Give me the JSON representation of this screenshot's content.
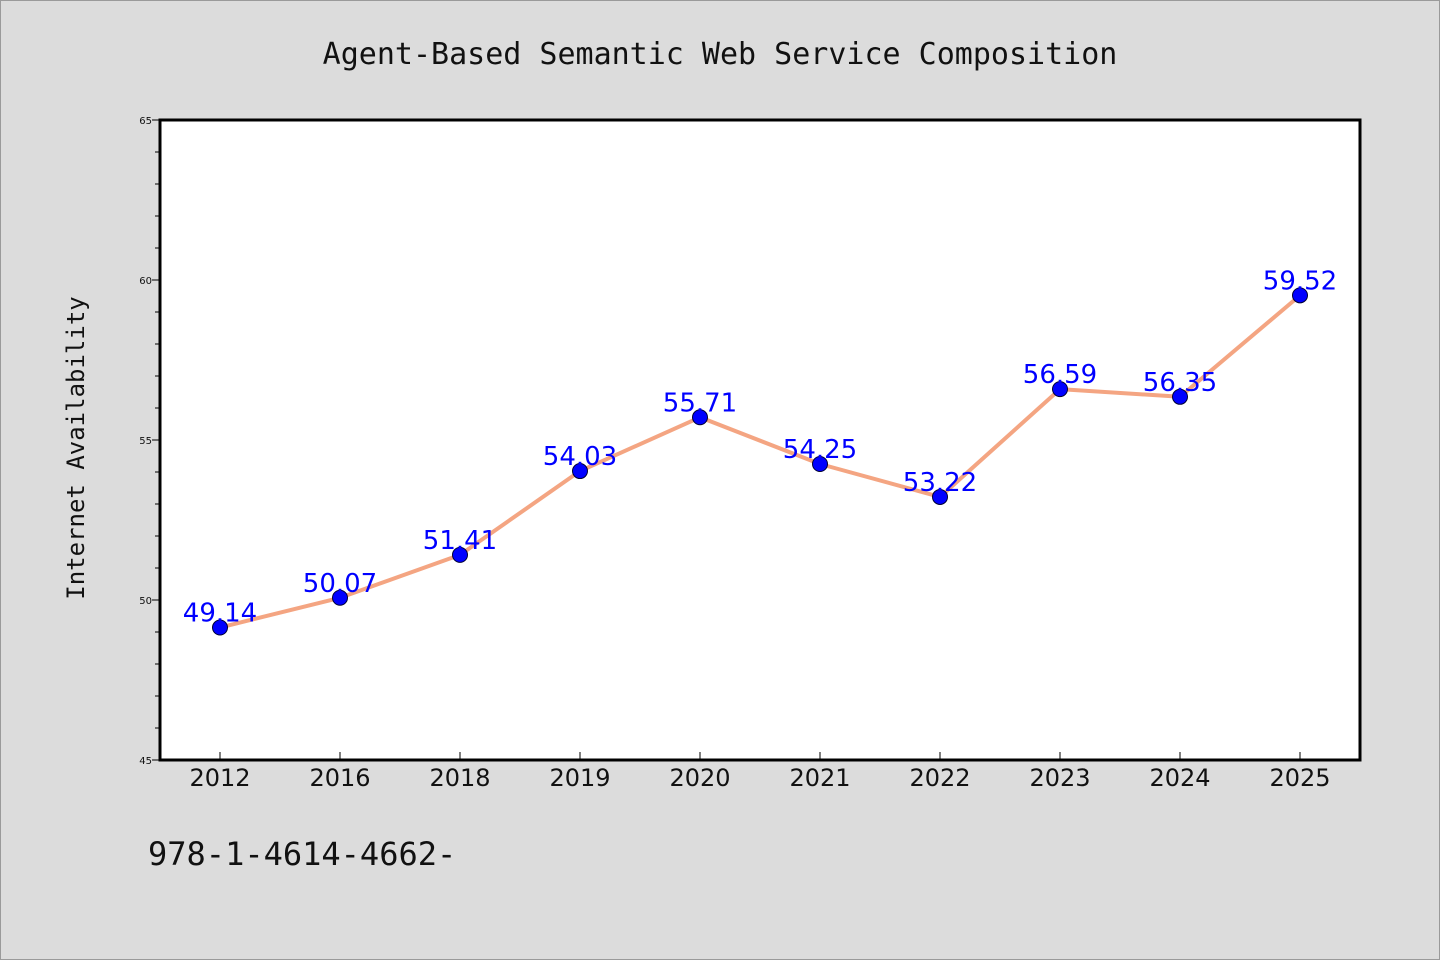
{
  "chart_data": {
    "type": "line",
    "title": "Agent-Based Semantic Web Service Composition",
    "ylabel": "Internet Availability",
    "xlabel": "",
    "categories": [
      "2012",
      "2016",
      "2018",
      "2019",
      "2020",
      "2021",
      "2022",
      "2023",
      "2024",
      "2025"
    ],
    "values": [
      49.14,
      50.07,
      51.41,
      54.03,
      55.71,
      54.25,
      53.22,
      56.59,
      56.35,
      59.52
    ],
    "value_labels": [
      "49.14",
      "50.07",
      "51.41",
      "54.03",
      "55.71",
      "54.25",
      "53.22",
      "56.59",
      "56.35",
      "59.52"
    ],
    "ylim": [
      45,
      65
    ],
    "yticks": [
      "45",
      "50",
      "55",
      "60",
      "65"
    ],
    "grid": false,
    "line_color": "#f4a582",
    "marker_color": "#0000ff",
    "label_color": "#0000ff"
  },
  "footer_text": "978-1-4614-4662-"
}
